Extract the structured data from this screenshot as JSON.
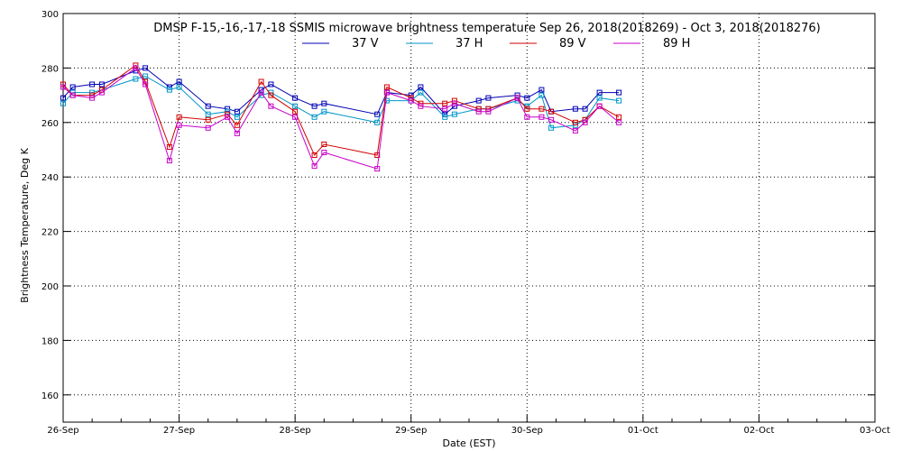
{
  "chart_data": {
    "type": "line",
    "title": "DMSP F-15,-16,-17,-18 SSMIS microwave brightness temperature Sep 26, 2018(2018269) - Oct  3, 2018(2018276)",
    "xlabel": "Date (EST)",
    "ylabel": "Brightness Temperature, Deg K",
    "ylim": [
      150,
      300
    ],
    "yticks": [
      160,
      180,
      200,
      220,
      240,
      260,
      280,
      300
    ],
    "xlim": [
      "2018-09-26",
      "2018-10-03"
    ],
    "xticks": [
      "26-Sep",
      "27-Sep",
      "28-Sep",
      "29-Sep",
      "30-Sep",
      "01-Oct",
      "02-Oct",
      "03-Oct"
    ],
    "grid": true,
    "legend": "top",
    "series": [
      {
        "name": "37 V",
        "color": "#0000b4",
        "x": [
          "2018-09-26 00:00",
          "2018-09-26 02:00",
          "2018-09-26 06:00",
          "2018-09-26 08:00",
          "2018-09-26 15:00",
          "2018-09-26 17:00",
          "2018-09-26 22:00",
          "2018-09-27 00:00",
          "2018-09-27 06:00",
          "2018-09-27 10:00",
          "2018-09-27 12:00",
          "2018-09-27 17:00",
          "2018-09-27 19:00",
          "2018-09-28 00:00",
          "2018-09-28 04:00",
          "2018-09-28 06:00",
          "2018-09-28 17:00",
          "2018-09-28 19:00",
          "2018-09-29 00:00",
          "2018-09-29 02:00",
          "2018-09-29 07:00",
          "2018-09-29 09:00",
          "2018-09-29 14:00",
          "2018-09-29 16:00",
          "2018-09-29 22:00",
          "2018-09-30 00:00",
          "2018-09-30 03:00",
          "2018-09-30 05:00",
          "2018-09-30 10:00",
          "2018-09-30 12:00",
          "2018-09-30 15:00",
          "2018-09-30 19:00"
        ],
        "values": [
          269,
          273,
          274,
          274,
          279,
          280,
          273,
          275,
          266,
          265,
          264,
          272,
          274,
          269,
          266,
          267,
          263,
          271,
          270,
          273,
          263,
          266,
          268,
          269,
          270,
          269,
          272,
          264,
          265,
          265,
          271,
          271
        ]
      },
      {
        "name": "37 H",
        "color": "#0096c8",
        "x": [
          "2018-09-26 00:00",
          "2018-09-26 02:00",
          "2018-09-26 06:00",
          "2018-09-26 08:00",
          "2018-09-26 15:00",
          "2018-09-26 17:00",
          "2018-09-26 22:00",
          "2018-09-27 00:00",
          "2018-09-27 06:00",
          "2018-09-27 10:00",
          "2018-09-27 12:00",
          "2018-09-27 17:00",
          "2018-09-27 19:00",
          "2018-09-28 00:00",
          "2018-09-28 04:00",
          "2018-09-28 06:00",
          "2018-09-28 17:00",
          "2018-09-28 19:00",
          "2018-09-29 00:00",
          "2018-09-29 02:00",
          "2018-09-29 07:00",
          "2018-09-29 09:00",
          "2018-09-29 14:00",
          "2018-09-29 16:00",
          "2018-09-29 22:00",
          "2018-09-30 00:00",
          "2018-09-30 03:00",
          "2018-09-30 05:00",
          "2018-09-30 10:00",
          "2018-09-30 12:00",
          "2018-09-30 15:00",
          "2018-09-30 19:00"
        ],
        "values": [
          267,
          271,
          271,
          272,
          276,
          277,
          272,
          273,
          263,
          264,
          262,
          270,
          271,
          266,
          262,
          264,
          260,
          268,
          268,
          271,
          262,
          263,
          265,
          265,
          268,
          266,
          270,
          258,
          259,
          261,
          269,
          268
        ]
      },
      {
        "name": "89 V",
        "color": "#d20000",
        "x": [
          "2018-09-26 00:00",
          "2018-09-26 02:00",
          "2018-09-26 06:00",
          "2018-09-26 08:00",
          "2018-09-26 15:00",
          "2018-09-26 17:00",
          "2018-09-26 22:00",
          "2018-09-27 00:00",
          "2018-09-27 06:00",
          "2018-09-27 10:00",
          "2018-09-27 12:00",
          "2018-09-27 17:00",
          "2018-09-27 19:00",
          "2018-09-28 00:00",
          "2018-09-28 04:00",
          "2018-09-28 06:00",
          "2018-09-28 17:00",
          "2018-09-28 19:00",
          "2018-09-29 00:00",
          "2018-09-29 02:00",
          "2018-09-29 07:00",
          "2018-09-29 09:00",
          "2018-09-29 14:00",
          "2018-09-29 16:00",
          "2018-09-29 22:00",
          "2018-09-30 00:00",
          "2018-09-30 03:00",
          "2018-09-30 05:00",
          "2018-09-30 10:00",
          "2018-09-30 12:00",
          "2018-09-30 15:00",
          "2018-09-30 19:00"
        ],
        "values": [
          274,
          270,
          270,
          272,
          281,
          275,
          251,
          262,
          261,
          263,
          259,
          275,
          270,
          264,
          248,
          252,
          248,
          273,
          269,
          267,
          267,
          268,
          265,
          265,
          269,
          265,
          265,
          264,
          260,
          261,
          266,
          262
        ]
      },
      {
        "name": "89 H",
        "color": "#c800c8",
        "x": [
          "2018-09-26 00:00",
          "2018-09-26 02:00",
          "2018-09-26 06:00",
          "2018-09-26 08:00",
          "2018-09-26 15:00",
          "2018-09-26 17:00",
          "2018-09-26 22:00",
          "2018-09-27 00:00",
          "2018-09-27 06:00",
          "2018-09-27 10:00",
          "2018-09-27 12:00",
          "2018-09-27 17:00",
          "2018-09-27 19:00",
          "2018-09-28 00:00",
          "2018-09-28 04:00",
          "2018-09-28 06:00",
          "2018-09-28 17:00",
          "2018-09-28 19:00",
          "2018-09-29 00:00",
          "2018-09-29 02:00",
          "2018-09-29 07:00",
          "2018-09-29 09:00",
          "2018-09-29 14:00",
          "2018-09-29 16:00",
          "2018-09-29 22:00",
          "2018-09-30 00:00",
          "2018-09-30 03:00",
          "2018-09-30 05:00",
          "2018-09-30 10:00",
          "2018-09-30 12:00",
          "2018-09-30 15:00",
          "2018-09-30 19:00"
        ],
        "values": [
          273,
          270,
          269,
          271,
          280,
          274,
          246,
          259,
          258,
          262,
          256,
          271,
          266,
          262,
          244,
          249,
          243,
          271,
          268,
          266,
          265,
          267,
          264,
          264,
          269,
          262,
          262,
          261,
          257,
          260,
          266,
          260
        ]
      }
    ]
  }
}
